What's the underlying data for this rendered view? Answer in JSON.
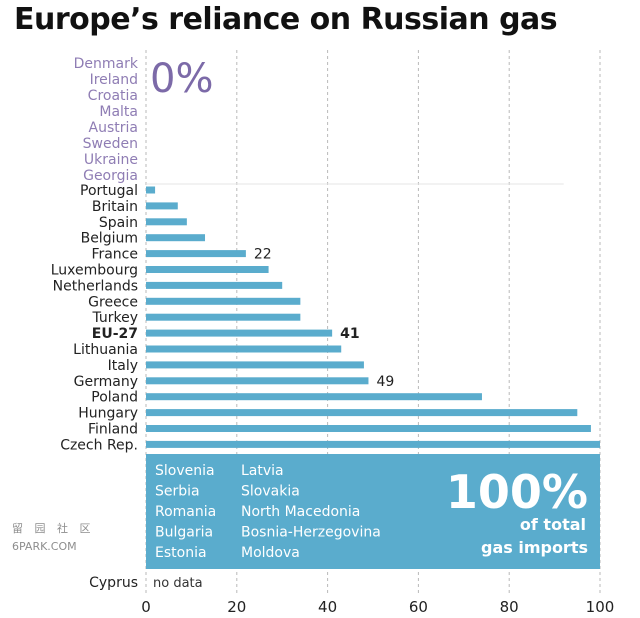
{
  "title": "Europe’s reliance on Russian gas",
  "chart_data": {
    "type": "bar",
    "orientation": "horizontal",
    "title": "Europe’s reliance on Russian gas",
    "xlim": [
      0,
      100
    ],
    "x_ticks": [
      "0",
      "20",
      "40",
      "60",
      "80",
      "100"
    ],
    "grid": true,
    "zero_group": {
      "label": "0%",
      "countries": [
        "Denmark",
        "Ireland",
        "Croatia",
        "Malta",
        "Austria",
        "Sweden",
        "Ukraine",
        "Georgia"
      ]
    },
    "categories": [
      "Portugal",
      "Britain",
      "Spain",
      "Belgium",
      "France",
      "Luxembourg",
      "Netherlands",
      "Greece",
      "Turkey",
      "EU-27",
      "Lithuania",
      "Italy",
      "Germany",
      "Poland",
      "Hungary",
      "Finland",
      "Czech Rep."
    ],
    "values": [
      2,
      7,
      9,
      13,
      22,
      27,
      30,
      34,
      34,
      41,
      43,
      48,
      49,
      74,
      95,
      98,
      100
    ],
    "data_labels": [
      {
        "category": "France",
        "text": "22"
      },
      {
        "category": "EU-27",
        "text": "41"
      },
      {
        "category": "Germany",
        "text": "49"
      }
    ],
    "highlighted_category": "EU-27",
    "full_group": {
      "big": "100%",
      "sub1": "of total",
      "sub2": "gas imports",
      "countries_col1": [
        "Slovenia",
        "Serbia",
        "Romania",
        "Bulgaria",
        "Estonia"
      ],
      "countries_col2": [
        "Latvia",
        "Slovakia",
        "North Macedonia",
        "Bosnia-Herzegovina",
        "Moldova"
      ]
    },
    "no_data": {
      "country": "Cyprus",
      "text": "no data"
    },
    "colors": {
      "bar": "#5aaccd",
      "full_box": "#5aaccd",
      "zero_text": "#8f7db4"
    }
  },
  "watermark": {
    "line1": "留 园 社 区",
    "line2": "6PARK.COM"
  }
}
